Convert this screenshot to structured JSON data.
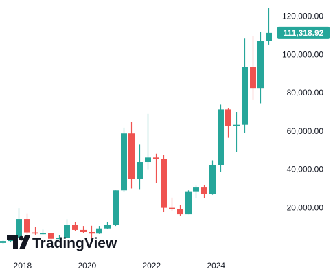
{
  "chart_data": {
    "type": "candlestick",
    "interval": "quarterly",
    "colors": {
      "up": "#26a69a",
      "down": "#ef5350",
      "grid": "none",
      "text": "#131722",
      "last_price_bg": "#26a69a"
    },
    "y_ticks": [
      "120,000.00",
      "100,000.00",
      "80,000.00",
      "60,000.00",
      "40,000.00",
      "20,000.00"
    ],
    "y_tick_values": [
      120000,
      100000,
      80000,
      60000,
      40000,
      20000
    ],
    "ylim": [
      -5000,
      128500
    ],
    "x_ticks": [
      "2018",
      "2020",
      "2022",
      "2024"
    ],
    "x_tick_positions": [
      2018,
      2020,
      2022,
      2024
    ],
    "xlim": [
      2017.3,
      2025.9
    ],
    "last_price": 111318.92,
    "last_price_label": "111,318.92",
    "watermark": "TradingView",
    "candles": [
      {
        "t": 2017.375,
        "o": 1500,
        "h": 2800,
        "l": 1000,
        "c": 2500
      },
      {
        "t": 2017.625,
        "o": 2500,
        "h": 5000,
        "l": 1800,
        "c": 4300
      },
      {
        "t": 2017.875,
        "o": 4300,
        "h": 19700,
        "l": 4000,
        "c": 14000
      },
      {
        "t": 2018.125,
        "o": 14000,
        "h": 17000,
        "l": 6000,
        "c": 7000
      },
      {
        "t": 2018.375,
        "o": 7000,
        "h": 10000,
        "l": 5800,
        "c": 6400
      },
      {
        "t": 2018.625,
        "o": 6400,
        "h": 8500,
        "l": 5900,
        "c": 6600
      },
      {
        "t": 2018.875,
        "o": 6600,
        "h": 6700,
        "l": 3200,
        "c": 3700
      },
      {
        "t": 2019.125,
        "o": 3700,
        "h": 5500,
        "l": 3400,
        "c": 4100
      },
      {
        "t": 2019.375,
        "o": 4100,
        "h": 13900,
        "l": 4000,
        "c": 10800
      },
      {
        "t": 2019.625,
        "o": 10800,
        "h": 12300,
        "l": 7800,
        "c": 8300
      },
      {
        "t": 2019.875,
        "o": 8300,
        "h": 10400,
        "l": 6500,
        "c": 7200
      },
      {
        "t": 2020.125,
        "o": 7200,
        "h": 10500,
        "l": 3800,
        "c": 6400
      },
      {
        "t": 2020.375,
        "o": 6400,
        "h": 10400,
        "l": 6200,
        "c": 9100
      },
      {
        "t": 2020.625,
        "o": 9100,
        "h": 12500,
        "l": 8900,
        "c": 10800
      },
      {
        "t": 2020.875,
        "o": 10800,
        "h": 29000,
        "l": 10400,
        "c": 29000
      },
      {
        "t": 2021.125,
        "o": 29000,
        "h": 61800,
        "l": 28000,
        "c": 58800
      },
      {
        "t": 2021.375,
        "o": 58800,
        "h": 64900,
        "l": 30000,
        "c": 35000
      },
      {
        "t": 2021.625,
        "o": 35000,
        "h": 53000,
        "l": 29300,
        "c": 43800
      },
      {
        "t": 2021.875,
        "o": 43800,
        "h": 69000,
        "l": 40000,
        "c": 46200
      },
      {
        "t": 2022.125,
        "o": 46200,
        "h": 48200,
        "l": 33000,
        "c": 45500
      },
      {
        "t": 2022.375,
        "o": 45500,
        "h": 47400,
        "l": 17600,
        "c": 19900
      },
      {
        "t": 2022.625,
        "o": 19900,
        "h": 25200,
        "l": 18200,
        "c": 19400
      },
      {
        "t": 2022.875,
        "o": 19400,
        "h": 21500,
        "l": 15500,
        "c": 16500
      },
      {
        "t": 2023.125,
        "o": 16500,
        "h": 29000,
        "l": 16500,
        "c": 28500
      },
      {
        "t": 2023.375,
        "o": 28500,
        "h": 31500,
        "l": 24800,
        "c": 30500
      },
      {
        "t": 2023.625,
        "o": 30500,
        "h": 31800,
        "l": 24900,
        "c": 27000
      },
      {
        "t": 2023.875,
        "o": 27000,
        "h": 44700,
        "l": 26700,
        "c": 42300
      },
      {
        "t": 2024.125,
        "o": 42300,
        "h": 73800,
        "l": 38500,
        "c": 71300
      },
      {
        "t": 2024.375,
        "o": 71300,
        "h": 72000,
        "l": 56500,
        "c": 62700
      },
      {
        "t": 2024.625,
        "o": 62700,
        "h": 70000,
        "l": 49000,
        "c": 63300
      },
      {
        "t": 2024.875,
        "o": 63300,
        "h": 108300,
        "l": 58900,
        "c": 93400
      },
      {
        "t": 2025.125,
        "o": 93400,
        "h": 109600,
        "l": 76500,
        "c": 82500
      },
      {
        "t": 2025.375,
        "o": 82500,
        "h": 112000,
        "l": 74500,
        "c": 107100
      },
      {
        "t": 2025.625,
        "o": 107100,
        "h": 124500,
        "l": 105200,
        "c": 111318.92
      }
    ]
  }
}
